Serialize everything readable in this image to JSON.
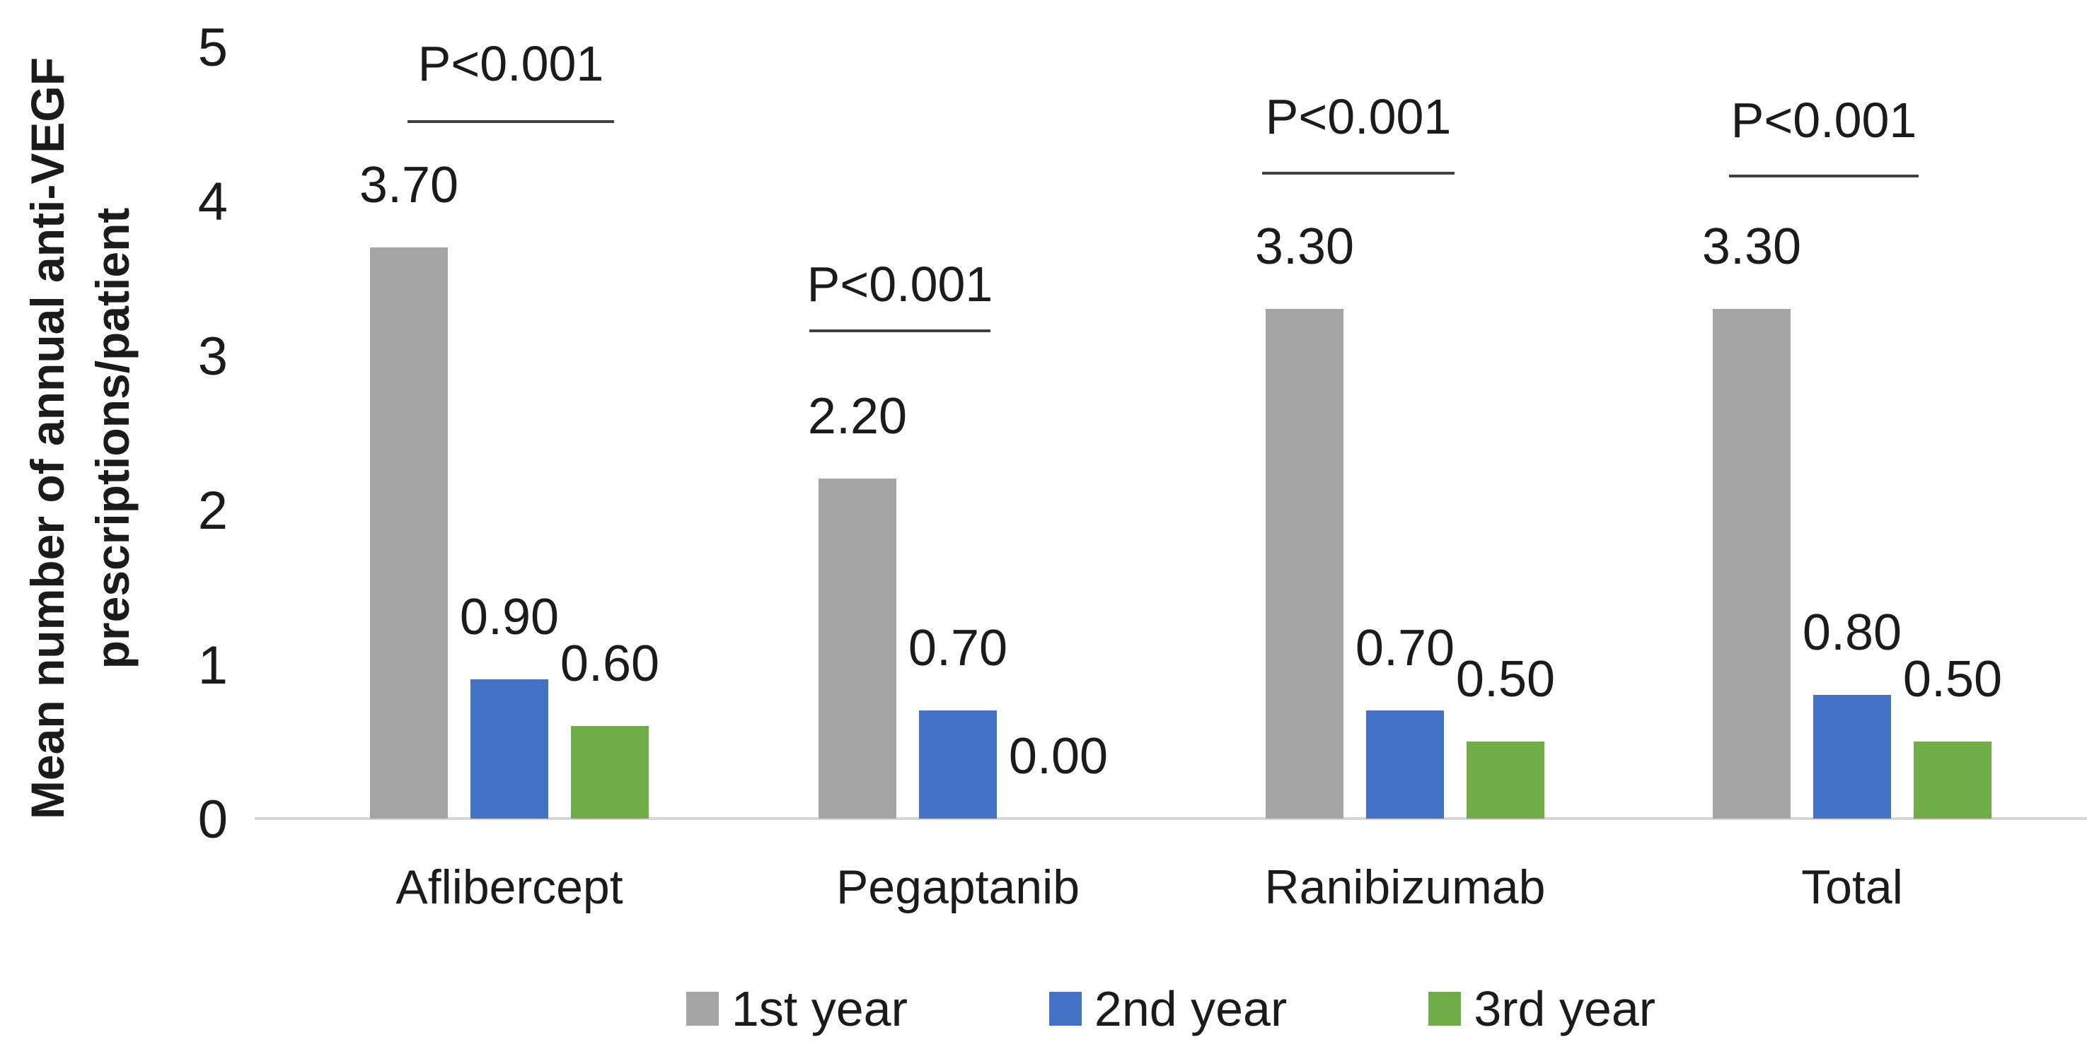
{
  "chart_data": {
    "type": "bar",
    "title": "",
    "ylabel_line1": "Mean number of annual anti-VEGF",
    "ylabel_line2": "prescriptions/patient",
    "xlabel": "",
    "ylim": [
      0,
      5
    ],
    "yticks": [
      "0",
      "1",
      "2",
      "3",
      "4",
      "5"
    ],
    "grid": false,
    "legend_position": "bottom",
    "categories": [
      "Aflibercept",
      "Pegaptanib",
      "Ranibizumab",
      "Total"
    ],
    "series": [
      {
        "name": "1st year",
        "color": "#A5A5A5",
        "values": [
          3.7,
          2.2,
          3.3,
          3.3
        ],
        "labels": [
          "3.70",
          "2.20",
          "3.30",
          "3.30"
        ]
      },
      {
        "name": "2nd year",
        "color": "#4472C4",
        "values": [
          0.9,
          0.7,
          0.7,
          0.8
        ],
        "labels": [
          "0.90",
          "0.70",
          "0.70",
          "0.80"
        ]
      },
      {
        "name": "3rd year",
        "color": "#70AD47",
        "values": [
          0.6,
          0.0,
          0.5,
          0.5
        ],
        "labels": [
          "0.60",
          "0.00",
          "0.50",
          "0.50"
        ]
      }
    ],
    "annotations": [
      {
        "group": "Aflibercept",
        "text": "P<0.001"
      },
      {
        "group": "Pegaptanib",
        "text": "P<0.001"
      },
      {
        "group": "Ranibizumab",
        "text": "P<0.001"
      },
      {
        "group": "Total",
        "text": "P<0.001"
      }
    ],
    "axis_line_color": "#D6D6D6",
    "annotation_line_color": "#404040",
    "text_color": "#1B1B1B"
  }
}
